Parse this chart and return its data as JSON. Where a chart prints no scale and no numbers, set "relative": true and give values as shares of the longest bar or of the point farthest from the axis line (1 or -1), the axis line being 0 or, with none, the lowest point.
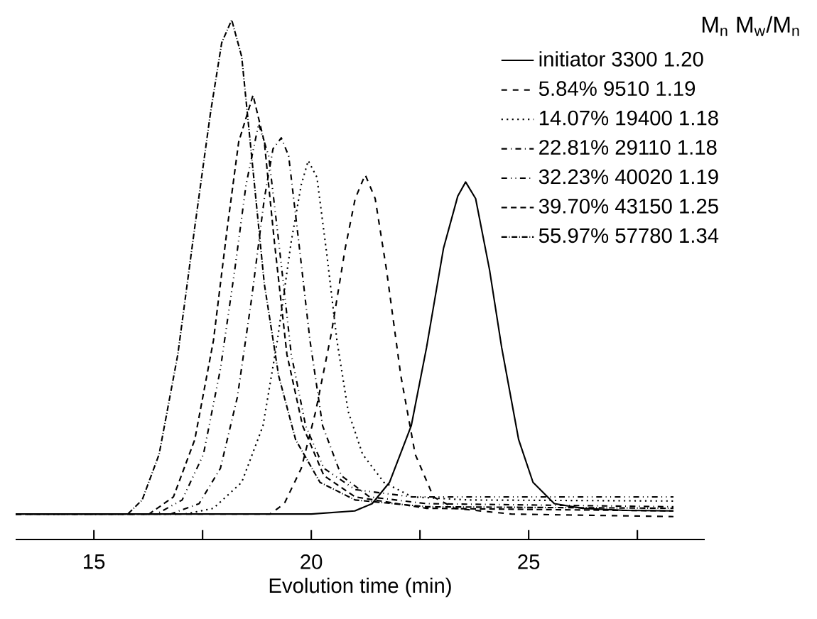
{
  "chart_data": {
    "type": "line",
    "relative": true,
    "xlabel": "Evolution time (min)",
    "xlim": [
      13.2,
      29.05
    ],
    "xticks": [
      15,
      {
        "value": 17.5,
        "label": null
      },
      20,
      {
        "value": 22.5,
        "label": null
      },
      25,
      {
        "value": 27.5,
        "label": null
      }
    ],
    "legend": "top right",
    "legend_title": "M$_{n}$  M$_{w}$/M$_{n}$",
    "grid": false,
    "marker": "none",
    "series": [
      {
        "name": "initiator  3300 1.20",
        "color": "#000000",
        "line_style": "solid",
        "x": [
          13.2,
          20.0,
          21.0,
          21.4,
          21.8,
          22.3,
          22.65,
          23.04,
          23.37,
          23.55,
          23.78,
          24.1,
          24.38,
          24.77,
          25.1,
          25.59,
          26.24,
          27.22,
          28.33
        ],
        "values": [
          0.049,
          0.049,
          0.055,
          0.069,
          0.11,
          0.219,
          0.369,
          0.56,
          0.661,
          0.688,
          0.656,
          0.519,
          0.369,
          0.192,
          0.11,
          0.069,
          0.06,
          0.056,
          0.055
        ]
      },
      {
        "name": "5.84%  9510  1.19",
        "color": "#000000",
        "line_style": "dashed",
        "x": [
          13.2,
          19.05,
          19.38,
          19.77,
          20.1,
          20.46,
          20.78,
          21.01,
          21.24,
          21.47,
          21.73,
          22.06,
          22.39,
          22.81,
          23.3,
          24.6,
          28.33
        ],
        "values": [
          0.049,
          0.049,
          0.069,
          0.137,
          0.246,
          0.396,
          0.56,
          0.656,
          0.702,
          0.656,
          0.519,
          0.315,
          0.164,
          0.082,
          0.06,
          0.049,
          0.044
        ]
      },
      {
        "name": "14.07% 19400 1.18",
        "color": "#000000",
        "line_style": "dotted",
        "x": [
          13.2,
          17.1,
          17.75,
          18.4,
          18.89,
          19.22,
          19.54,
          19.77,
          19.93,
          20.13,
          20.36,
          20.59,
          20.85,
          21.18,
          21.67,
          22.32,
          23.63,
          28.33
        ],
        "values": [
          0.049,
          0.049,
          0.06,
          0.11,
          0.219,
          0.383,
          0.574,
          0.683,
          0.729,
          0.697,
          0.547,
          0.383,
          0.246,
          0.164,
          0.11,
          0.082,
          0.076,
          0.074
        ]
      },
      {
        "name": "22.81% 29110 1.18",
        "color": "#000000",
        "line_style": "dashdotted",
        "x": [
          13.2,
          16.76,
          17.42,
          17.91,
          18.3,
          18.63,
          18.92,
          19.12,
          19.31,
          19.48,
          19.71,
          19.97,
          20.26,
          20.69,
          21.34,
          22.65,
          28.33
        ],
        "values": [
          0.049,
          0.049,
          0.069,
          0.137,
          0.274,
          0.465,
          0.656,
          0.752,
          0.773,
          0.738,
          0.574,
          0.383,
          0.219,
          0.123,
          0.082,
          0.069,
          0.063
        ]
      },
      {
        "name": "32.23% 40020 1.19",
        "color": "#000000",
        "line_style": "dashdotdotted",
        "x": [
          13.2,
          16.44,
          17.03,
          17.52,
          17.91,
          18.24,
          18.5,
          18.79,
          19.02,
          19.25,
          19.54,
          19.87,
          20.29,
          21.01,
          22.32,
          28.33
        ],
        "values": [
          0.049,
          0.049,
          0.076,
          0.164,
          0.328,
          0.519,
          0.683,
          0.8,
          0.738,
          0.574,
          0.356,
          0.219,
          0.137,
          0.096,
          0.082,
          0.082
        ]
      },
      {
        "name": "39.70% 43150 1.25",
        "color": "#000000",
        "line_style": "densely dashed",
        "x": [
          13.2,
          16.27,
          16.83,
          17.32,
          17.75,
          18.07,
          18.33,
          18.66,
          18.92,
          19.15,
          19.44,
          19.8,
          20.29,
          21.01,
          22.65,
          28.33
        ],
        "values": [
          0.049,
          0.049,
          0.082,
          0.192,
          0.383,
          0.601,
          0.765,
          0.855,
          0.765,
          0.574,
          0.356,
          0.219,
          0.123,
          0.082,
          0.06,
          0.055
        ]
      },
      {
        "name": "55.97% 57780 1.34",
        "color": "#000000",
        "line_style": "densely dashdotted",
        "x": [
          13.2,
          15.78,
          16.11,
          16.5,
          16.93,
          17.32,
          17.68,
          17.94,
          18.17,
          18.4,
          18.66,
          18.92,
          19.25,
          19.64,
          20.2,
          21.01,
          22.65,
          28.33
        ],
        "values": [
          0.049,
          0.049,
          0.076,
          0.164,
          0.356,
          0.601,
          0.82,
          0.956,
          1.0,
          0.929,
          0.711,
          0.492,
          0.315,
          0.192,
          0.11,
          0.076,
          0.063,
          0.06
        ]
      }
    ]
  }
}
